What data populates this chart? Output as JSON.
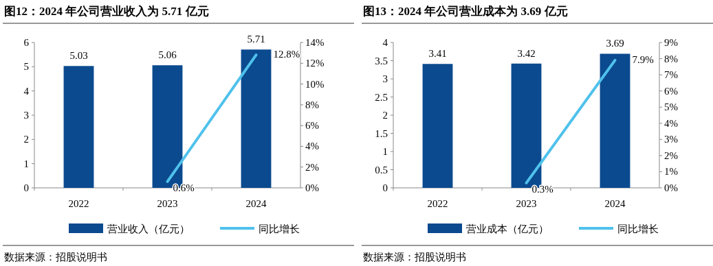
{
  "chart_data": [
    {
      "type": "bar",
      "title": "图12：2024 年公司营业收入为 5.71 亿元",
      "categories": [
        "2022",
        "2023",
        "2024"
      ],
      "series": [
        {
          "name": "营业收入（亿元）",
          "color": "#0b4a8f",
          "values": [
            5.03,
            5.06,
            5.71
          ],
          "value_labels": [
            "5.03",
            "5.06",
            "5.71"
          ]
        },
        {
          "name": "同比增长",
          "type": "line",
          "axis": "y2",
          "color": "#4fc1ec",
          "values": [
            null,
            0.6,
            12.8
          ],
          "value_labels": [
            null,
            "0.6%",
            "12.8%"
          ]
        }
      ],
      "ylim": [
        0,
        6
      ],
      "yticks": [
        0,
        1,
        2,
        3,
        4,
        5,
        6
      ],
      "y2lim": [
        0,
        14
      ],
      "y2ticks": [
        {
          "value": 0,
          "label": "0%"
        },
        {
          "value": 2,
          "label": "2%"
        },
        {
          "value": 4,
          "label": "4%"
        },
        {
          "value": 6,
          "label": "6%"
        },
        {
          "value": 8,
          "label": "8%"
        },
        {
          "value": 10,
          "label": "10%"
        },
        {
          "value": 12,
          "label": "12%"
        },
        {
          "value": 14,
          "label": "14%"
        }
      ],
      "legend": "bottom",
      "annotations": [
        "数据来源：招股说明书"
      ]
    },
    {
      "type": "bar",
      "title": "图13：2024 年公司营业成本为 3.69 亿元",
      "categories": [
        "2022",
        "2023",
        "2024"
      ],
      "series": [
        {
          "name": "营业成本（亿元）",
          "color": "#0b4a8f",
          "values": [
            3.41,
            3.42,
            3.69
          ],
          "value_labels": [
            "3.41",
            "3.42",
            "3.69"
          ]
        },
        {
          "name": "同比增长",
          "type": "line",
          "axis": "y2",
          "color": "#4fc1ec",
          "values": [
            null,
            0.3,
            7.9
          ],
          "value_labels": [
            null,
            "0.3%",
            "7.9%"
          ]
        }
      ],
      "ylim": [
        0,
        4
      ],
      "yticks": [
        0,
        0.5,
        1,
        1.5,
        2,
        2.5,
        3,
        3.5,
        4
      ],
      "y2lim": [
        0,
        9
      ],
      "y2ticks": [
        {
          "value": 0,
          "label": "0%"
        },
        {
          "value": 1,
          "label": "1%"
        },
        {
          "value": 2,
          "label": "2%"
        },
        {
          "value": 3,
          "label": "3%"
        },
        {
          "value": 4,
          "label": "4%"
        },
        {
          "value": 5,
          "label": "5%"
        },
        {
          "value": 6,
          "label": "6%"
        },
        {
          "value": 7,
          "label": "7%"
        },
        {
          "value": 8,
          "label": "8%"
        },
        {
          "value": 9,
          "label": "9%"
        }
      ],
      "legend": "bottom",
      "annotations": [
        "数据来源：招股说明书"
      ]
    }
  ]
}
